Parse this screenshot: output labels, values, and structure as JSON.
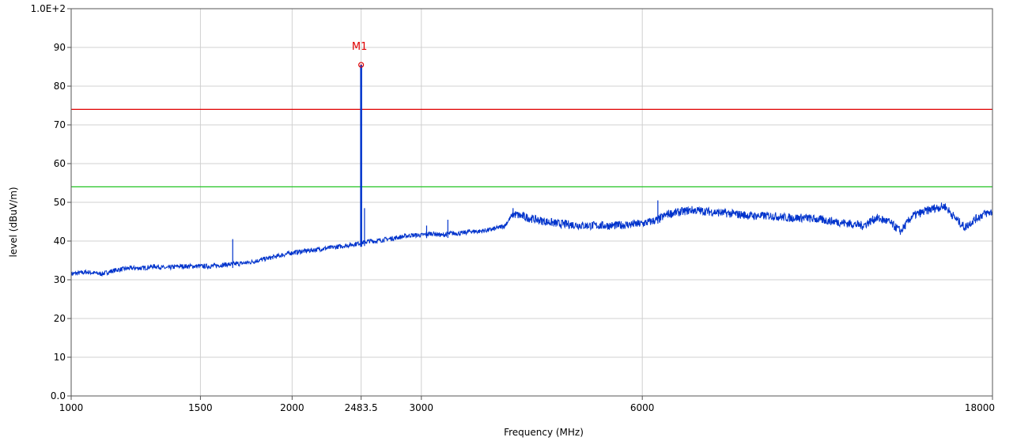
{
  "chart_data": {
    "type": "line",
    "xlabel": "Frequency (MHz)",
    "ylabel": "level (dBuV/m)",
    "x_scale": "log",
    "xlim": [
      1000,
      18000
    ],
    "ylim": [
      0,
      100
    ],
    "x_ticks": [
      {
        "value": 1000,
        "label": "1000"
      },
      {
        "value": 1500,
        "label": "1500"
      },
      {
        "value": 2000,
        "label": "2000"
      },
      {
        "value": 2483.5,
        "label": "2483.5"
      },
      {
        "value": 3000,
        "label": "3000"
      },
      {
        "value": 6000,
        "label": "6000"
      },
      {
        "value": 18000,
        "label": "18000"
      }
    ],
    "y_ticks": [
      {
        "value": 0,
        "label": "0.0"
      },
      {
        "value": 10,
        "label": "10"
      },
      {
        "value": 20,
        "label": "20"
      },
      {
        "value": 30,
        "label": "30"
      },
      {
        "value": 40,
        "label": "40"
      },
      {
        "value": 50,
        "label": "50"
      },
      {
        "value": 60,
        "label": "60"
      },
      {
        "value": 70,
        "label": "70"
      },
      {
        "value": 80,
        "label": "80"
      },
      {
        "value": 90,
        "label": "90"
      },
      {
        "value": 100,
        "label": "1.0E+2"
      }
    ],
    "grid": true,
    "limit_lines": [
      {
        "value": 74,
        "color": "#e00000"
      },
      {
        "value": 54,
        "color": "#22c422"
      }
    ],
    "series": [
      {
        "color": "#0033cc",
        "x": [
          1000,
          1050,
          1100,
          1150,
          1200,
          1250,
          1300,
          1350,
          1400,
          1450,
          1500,
          1550,
          1600,
          1650,
          1700,
          1750,
          1800,
          1850,
          1900,
          1950,
          2000,
          2100,
          2200,
          2300,
          2400,
          2480,
          2550,
          2600,
          2700,
          2800,
          2900,
          3000,
          3100,
          3200,
          3300,
          3400,
          3500,
          3600,
          3750,
          3900,
          4000,
          4300,
          4600,
          5000,
          5500,
          6000,
          6300,
          6500,
          7000,
          7500,
          8000,
          8500,
          9000,
          9500,
          10000,
          10500,
          11000,
          11500,
          12000,
          12500,
          13000,
          13500,
          14000,
          14500,
          15000,
          15500,
          16000,
          16500,
          17000,
          17500,
          18000
        ],
        "y": [
          31.5,
          32.0,
          31.5,
          32.5,
          33.0,
          33.0,
          33.5,
          33.0,
          33.5,
          33.5,
          33.5,
          33.5,
          33.8,
          34.0,
          34.2,
          34.5,
          35.0,
          35.5,
          36.0,
          36.5,
          37.0,
          37.5,
          38.0,
          38.5,
          39.0,
          39.5,
          40.0,
          40.0,
          40.5,
          41.0,
          41.5,
          41.5,
          42.0,
          41.5,
          42.0,
          42.0,
          42.5,
          42.5,
          43.0,
          44.0,
          47.0,
          45.5,
          44.5,
          44.0,
          44.0,
          44.5,
          45.5,
          47.0,
          48.0,
          47.5,
          47.0,
          46.5,
          46.5,
          46.0,
          46.0,
          45.5,
          45.0,
          44.5,
          44.0,
          46.0,
          45.0,
          42.5,
          46.5,
          47.5,
          48.5,
          49.0,
          46.0,
          43.5,
          45.5,
          47.0,
          47.5
        ]
      }
    ],
    "spikes": [
      {
        "x": 2483.5,
        "y": 85.5
      },
      {
        "x": 2510,
        "y": 48.5
      },
      {
        "x": 1660,
        "y": 40.5
      },
      {
        "x": 3260,
        "y": 45.5
      },
      {
        "x": 4000,
        "y": 48.5
      },
      {
        "x": 6300,
        "y": 50.5
      },
      {
        "x": 3050,
        "y": 44.0
      }
    ],
    "markers": [
      {
        "label": "M1",
        "x": 2483.5,
        "y": 85.5,
        "color": "#e00000"
      }
    ]
  }
}
